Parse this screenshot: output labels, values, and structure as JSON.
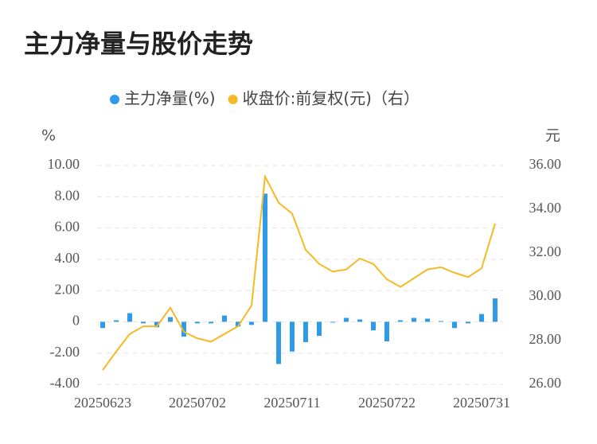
{
  "chart_data": {
    "type": "bar-line",
    "title": "主力净量与股价走势",
    "y_label": "%",
    "y2_label": "元",
    "categories": [
      "20250623",
      null,
      null,
      null,
      null,
      null,
      null,
      "20250702",
      null,
      null,
      null,
      null,
      null,
      null,
      "20250711",
      null,
      null,
      null,
      null,
      null,
      null,
      "20250722",
      null,
      null,
      null,
      null,
      null,
      null,
      "20250731",
      null
    ],
    "series": [
      {
        "name": "主力净量(%)",
        "color": "#2f9be8",
        "type": "bar",
        "values": [
          -0.4,
          0.1,
          0.55,
          -0.1,
          -0.35,
          0.3,
          -0.95,
          -0.1,
          -0.1,
          0.4,
          -0.3,
          -0.2,
          8.2,
          -2.7,
          -1.9,
          -1.3,
          -0.9,
          -0.05,
          0.25,
          0.15,
          -0.55,
          -1.25,
          0.1,
          0.25,
          0.2,
          0.05,
          -0.4,
          -0.1,
          0.5,
          1.5
        ]
      },
      {
        "name": "收盘价:前复权(元)（右）",
        "color": "#f5b925",
        "type": "line",
        "axis": "y2",
        "values": [
          26.65,
          27.5,
          28.3,
          28.65,
          28.65,
          29.5,
          28.4,
          28.1,
          27.95,
          28.3,
          28.65,
          29.6,
          35.5,
          34.3,
          33.8,
          32.15,
          31.5,
          31.15,
          31.25,
          31.75,
          31.5,
          30.8,
          30.45,
          30.85,
          31.25,
          31.35,
          31.1,
          30.9,
          31.3,
          33.35
        ]
      }
    ],
    "ylim": [
      -4,
      10
    ],
    "yticks": [
      {
        "value": -4,
        "label": "-4.00"
      },
      {
        "value": -2,
        "label": "-2.00"
      },
      0,
      {
        "value": 2,
        "label": "2.00"
      },
      {
        "value": 4,
        "label": "4.00"
      },
      {
        "value": 6,
        "label": "6.00"
      },
      {
        "value": 8,
        "label": "8.00"
      },
      {
        "value": 10,
        "label": "10.00"
      }
    ],
    "y2lim": [
      26,
      36
    ],
    "y2ticks": [
      {
        "value": 26,
        "label": "26.00"
      },
      {
        "value": 28,
        "label": "28.00"
      },
      {
        "value": 30,
        "label": "30.00"
      },
      {
        "value": 32,
        "label": "32.00"
      },
      {
        "value": 34,
        "label": "34.00"
      },
      {
        "value": 36,
        "label": "36.00"
      }
    ],
    "grid": true,
    "legend": "top"
  }
}
